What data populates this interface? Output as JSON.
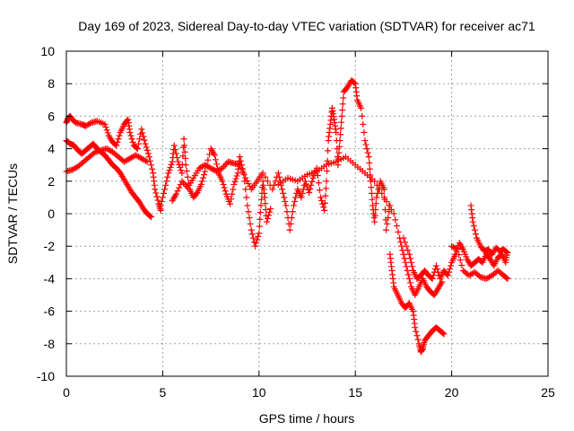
{
  "chart_data": {
    "type": "scatter",
    "title": "Day 169 of 2023, Sidereal Day-to-day VTEC variation (SDTVAR) for receiver ac71",
    "xlabel": "GPS time / hours",
    "ylabel": "SDTVAR / TECUs",
    "xlim": [
      0,
      25
    ],
    "ylim": [
      -10,
      10
    ],
    "xticks": [
      0,
      5,
      10,
      15,
      20,
      25
    ],
    "yticks": [
      -10,
      -8,
      -6,
      -4,
      -2,
      0,
      2,
      4,
      6,
      8,
      10
    ],
    "grid": true,
    "legend": "none",
    "marker": "+",
    "series": [
      {
        "name": "SDTVAR",
        "color": "#ff0000",
        "points": [
          [
            0.0,
            5.6
          ],
          [
            0.1,
            5.9
          ],
          [
            0.2,
            6.0
          ],
          [
            0.3,
            5.8
          ],
          [
            0.5,
            5.6
          ],
          [
            0.8,
            5.5
          ],
          [
            1.0,
            5.4
          ],
          [
            1.3,
            5.6
          ],
          [
            1.6,
            5.7
          ],
          [
            2.0,
            5.5
          ],
          [
            2.2,
            4.8
          ],
          [
            2.4,
            4.4
          ],
          [
            2.6,
            4.2
          ],
          [
            2.8,
            5.0
          ],
          [
            3.0,
            5.5
          ],
          [
            3.2,
            5.8
          ],
          [
            3.3,
            5.0
          ],
          [
            3.5,
            4.2
          ],
          [
            3.7,
            4.0
          ],
          [
            3.9,
            5.2
          ],
          [
            4.1,
            4.3
          ],
          [
            4.3,
            3.5
          ],
          [
            4.5,
            2.5
          ],
          [
            4.6,
            1.5
          ],
          [
            4.8,
            0.6
          ],
          [
            4.9,
            0.2
          ],
          [
            0.0,
            4.5
          ],
          [
            0.2,
            4.3
          ],
          [
            0.4,
            4.2
          ],
          [
            0.6,
            3.9
          ],
          [
            0.8,
            3.7
          ],
          [
            1.0,
            3.9
          ],
          [
            1.2,
            4.1
          ],
          [
            1.4,
            4.3
          ],
          [
            1.6,
            4.0
          ],
          [
            1.8,
            3.8
          ],
          [
            2.0,
            3.6
          ],
          [
            2.2,
            3.3
          ],
          [
            2.4,
            3.0
          ],
          [
            2.6,
            2.8
          ],
          [
            2.8,
            2.5
          ],
          [
            3.0,
            2.1
          ],
          [
            3.2,
            1.7
          ],
          [
            3.4,
            1.3
          ],
          [
            3.6,
            1.0
          ],
          [
            3.8,
            0.7
          ],
          [
            4.0,
            0.3
          ],
          [
            4.2,
            0.0
          ],
          [
            4.4,
            -0.2
          ],
          [
            0.0,
            2.6
          ],
          [
            0.3,
            2.7
          ],
          [
            0.6,
            2.9
          ],
          [
            0.9,
            3.2
          ],
          [
            1.2,
            3.5
          ],
          [
            1.5,
            3.8
          ],
          [
            1.8,
            3.9
          ],
          [
            2.1,
            4.0
          ],
          [
            2.4,
            3.8
          ],
          [
            2.7,
            3.5
          ],
          [
            3.0,
            3.2
          ],
          [
            3.3,
            3.4
          ],
          [
            3.6,
            3.6
          ],
          [
            3.9,
            3.4
          ],
          [
            4.2,
            3.2
          ],
          [
            4.9,
            0.5
          ],
          [
            5.1,
            1.5
          ],
          [
            5.3,
            2.5
          ],
          [
            5.5,
            3.2
          ],
          [
            5.6,
            4.2
          ],
          [
            5.8,
            3.2
          ],
          [
            6.0,
            2.5
          ],
          [
            6.1,
            4.6
          ],
          [
            6.2,
            3.0
          ],
          [
            6.4,
            1.5
          ],
          [
            6.6,
            1.0
          ],
          [
            6.8,
            1.3
          ],
          [
            7.0,
            1.8
          ],
          [
            7.2,
            2.6
          ],
          [
            7.5,
            4.0
          ],
          [
            7.7,
            3.6
          ],
          [
            7.9,
            2.5
          ],
          [
            8.1,
            2.0
          ],
          [
            8.3,
            1.2
          ],
          [
            8.5,
            0.6
          ],
          [
            8.7,
            1.8
          ],
          [
            8.9,
            2.5
          ],
          [
            9.0,
            3.5
          ],
          [
            9.2,
            2.5
          ],
          [
            9.4,
            0.5
          ],
          [
            9.6,
            -1.0
          ],
          [
            9.8,
            -2.0
          ],
          [
            10.0,
            -1.2
          ],
          [
            10.1,
            0.5
          ],
          [
            10.2,
            2.0
          ],
          [
            10.3,
            1.0
          ],
          [
            10.4,
            -0.5
          ],
          [
            10.6,
            0.3
          ],
          [
            5.5,
            0.8
          ],
          [
            5.7,
            1.2
          ],
          [
            6.0,
            2.0
          ],
          [
            6.3,
            1.6
          ],
          [
            6.6,
            2.2
          ],
          [
            6.9,
            2.8
          ],
          [
            7.2,
            3.0
          ],
          [
            7.5,
            2.8
          ],
          [
            7.8,
            2.6
          ],
          [
            8.1,
            2.8
          ],
          [
            8.4,
            3.2
          ],
          [
            8.7,
            3.1
          ],
          [
            9.0,
            3.0
          ],
          [
            9.3,
            2.2
          ],
          [
            9.6,
            1.5
          ],
          [
            9.9,
            2.0
          ],
          [
            10.2,
            2.5
          ],
          [
            10.7,
            1.5
          ],
          [
            11.0,
            2.5
          ],
          [
            11.2,
            1.5
          ],
          [
            11.4,
            0.5
          ],
          [
            11.6,
            -1.0
          ],
          [
            11.8,
            0.5
          ],
          [
            12.0,
            1.5
          ],
          [
            12.2,
            1.0
          ],
          [
            12.4,
            2.0
          ],
          [
            12.6,
            1.3
          ],
          [
            12.8,
            2.2
          ],
          [
            13.0,
            2.8
          ],
          [
            13.2,
            1.0
          ],
          [
            13.4,
            0.2
          ],
          [
            13.5,
            2.0
          ],
          [
            13.6,
            4.5
          ],
          [
            13.7,
            5.5
          ],
          [
            13.8,
            6.5
          ],
          [
            13.9,
            5.8
          ],
          [
            14.0,
            5.0
          ],
          [
            14.1,
            3.0
          ],
          [
            14.2,
            4.5
          ],
          [
            14.3,
            6.0
          ],
          [
            14.4,
            7.5
          ],
          [
            14.6,
            7.8
          ],
          [
            14.8,
            8.2
          ],
          [
            15.0,
            8.0
          ],
          [
            15.1,
            7.0
          ],
          [
            15.3,
            6.5
          ],
          [
            15.5,
            4.5
          ],
          [
            15.7,
            3.5
          ],
          [
            15.8,
            2.0
          ],
          [
            15.9,
            0.5
          ],
          [
            16.0,
            -0.5
          ],
          [
            16.1,
            1.0
          ],
          [
            16.3,
            2.0
          ],
          [
            16.5,
            1.5
          ],
          [
            16.6,
            -1.0
          ],
          [
            16.8,
            0.5
          ],
          [
            11.0,
            1.8
          ],
          [
            11.5,
            2.2
          ],
          [
            12.0,
            2.0
          ],
          [
            12.5,
            2.4
          ],
          [
            13.0,
            2.6
          ],
          [
            13.5,
            3.0
          ],
          [
            14.0,
            3.2
          ],
          [
            14.5,
            3.5
          ],
          [
            15.0,
            3.0
          ],
          [
            15.5,
            2.5
          ],
          [
            16.0,
            2.0
          ],
          [
            16.5,
            1.0
          ],
          [
            17.0,
            0.0
          ],
          [
            17.3,
            -1.5
          ],
          [
            17.5,
            -2.5
          ],
          [
            17.7,
            -3.5
          ],
          [
            17.9,
            -4.5
          ],
          [
            18.1,
            -5.0
          ],
          [
            18.3,
            -4.5
          ],
          [
            18.5,
            -4.0
          ],
          [
            18.7,
            -4.5
          ],
          [
            18.9,
            -4.8
          ],
          [
            19.1,
            -5.0
          ],
          [
            19.3,
            -4.6
          ],
          [
            19.5,
            -4.2
          ],
          [
            16.8,
            -2.5
          ],
          [
            16.9,
            -3.5
          ],
          [
            17.0,
            -4.5
          ],
          [
            17.2,
            -5.0
          ],
          [
            17.4,
            -5.5
          ],
          [
            17.6,
            -5.8
          ],
          [
            17.8,
            -5.5
          ],
          [
            18.0,
            -6.0
          ],
          [
            18.1,
            -7.0
          ],
          [
            18.3,
            -8.0
          ],
          [
            18.4,
            -8.5
          ],
          [
            18.5,
            -8.3
          ],
          [
            18.6,
            -7.8
          ],
          [
            18.8,
            -7.5
          ],
          [
            19.0,
            -7.2
          ],
          [
            19.2,
            -7.0
          ],
          [
            19.4,
            -7.2
          ],
          [
            19.6,
            -7.4
          ],
          [
            17.5,
            -1.5
          ],
          [
            17.8,
            -2.5
          ],
          [
            18.0,
            -3.5
          ],
          [
            18.2,
            -4.0
          ],
          [
            18.4,
            -3.8
          ],
          [
            18.6,
            -3.5
          ],
          [
            18.8,
            -3.8
          ],
          [
            19.0,
            -4.0
          ],
          [
            19.2,
            -3.2
          ],
          [
            19.4,
            -4.0
          ],
          [
            19.6,
            -3.5
          ],
          [
            19.8,
            -3.8
          ],
          [
            20.0,
            -3.0
          ],
          [
            20.2,
            -2.5
          ],
          [
            20.4,
            -1.8
          ],
          [
            20.6,
            -2.2
          ],
          [
            20.8,
            -2.8
          ],
          [
            21.0,
            -3.2
          ],
          [
            21.2,
            -3.0
          ],
          [
            21.4,
            -2.8
          ],
          [
            21.6,
            -3.0
          ],
          [
            21.8,
            -2.5
          ],
          [
            22.0,
            -2.8
          ],
          [
            22.2,
            -3.2
          ],
          [
            22.4,
            -2.7
          ],
          [
            22.6,
            -2.5
          ],
          [
            22.8,
            -3.0
          ],
          [
            22.9,
            -2.4
          ],
          [
            20.0,
            -2.0
          ],
          [
            20.3,
            -2.2
          ],
          [
            20.6,
            -3.5
          ],
          [
            20.9,
            -3.8
          ],
          [
            21.2,
            -3.6
          ],
          [
            21.5,
            -3.9
          ],
          [
            21.8,
            -4.0
          ],
          [
            22.1,
            -3.8
          ],
          [
            22.4,
            -3.5
          ],
          [
            22.7,
            -3.8
          ],
          [
            22.9,
            -4.0
          ],
          [
            21.0,
            0.5
          ],
          [
            21.1,
            -0.5
          ],
          [
            21.3,
            -1.5
          ],
          [
            21.5,
            -2.0
          ],
          [
            21.7,
            -2.3
          ],
          [
            21.9,
            -2.2
          ],
          [
            22.1,
            -2.5
          ],
          [
            22.3,
            -2.1
          ],
          [
            22.5,
            -2.3
          ],
          [
            22.7,
            -2.2
          ],
          [
            22.9,
            -2.4
          ]
        ]
      }
    ]
  }
}
